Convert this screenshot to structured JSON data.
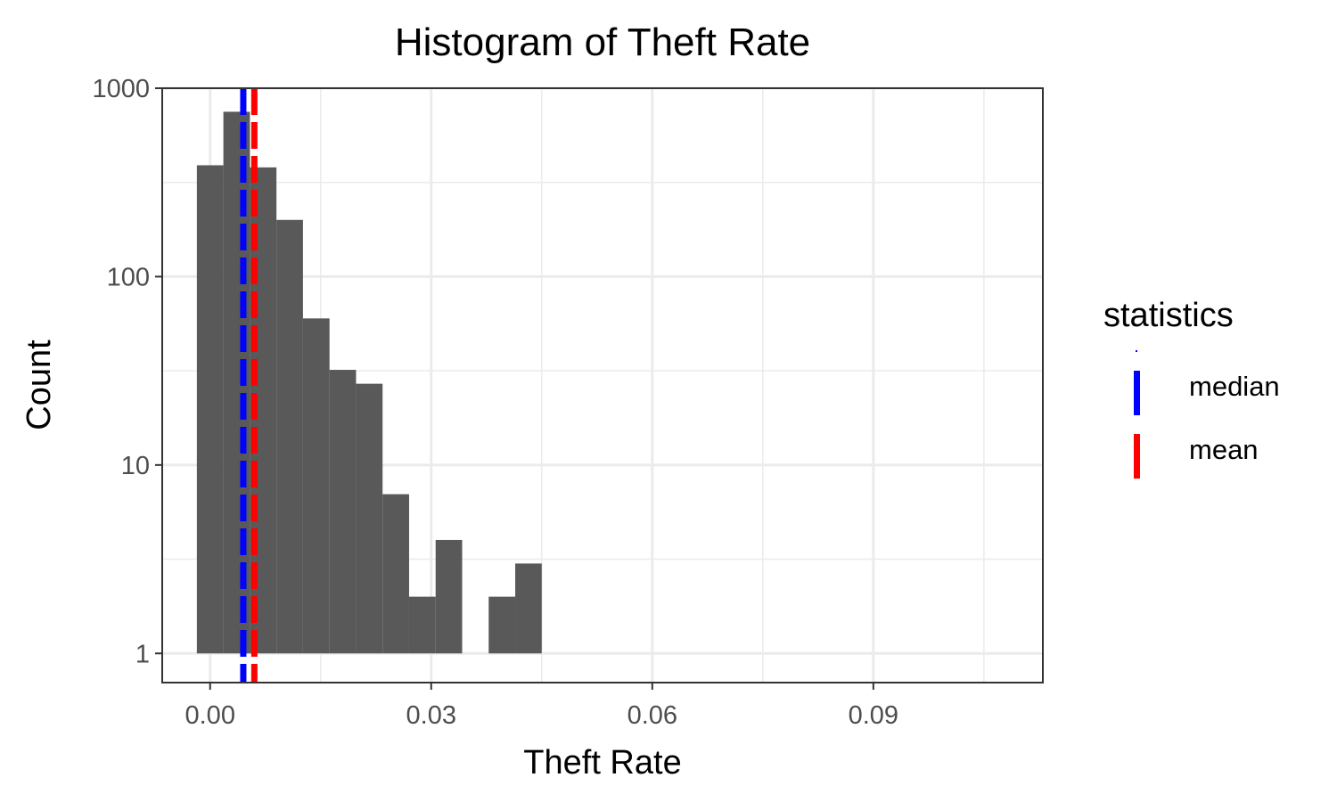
{
  "chart_data": {
    "type": "bar",
    "title": "Histogram of Theft Rate",
    "xlabel": "Theft Rate",
    "ylabel": "Count",
    "y_scale": "log10",
    "xlim": [
      -0.0065,
      0.113
    ],
    "ylim": [
      0.7,
      1000
    ],
    "x_ticks": [
      {
        "value": 0.0,
        "label": "0.00"
      },
      {
        "value": 0.03,
        "label": "0.03"
      },
      {
        "value": 0.06,
        "label": "0.06"
      },
      {
        "value": 0.09,
        "label": "0.09"
      }
    ],
    "y_ticks": [
      {
        "value": 1,
        "label": "1"
      },
      {
        "value": 10,
        "label": "10"
      },
      {
        "value": 100,
        "label": "100"
      },
      {
        "value": 1000,
        "label": "1000"
      }
    ],
    "grid": true,
    "bin_width": 0.0036,
    "bins": [
      {
        "x_start": -0.0018,
        "x_end": 0.0018,
        "count": 390
      },
      {
        "x_start": 0.0018,
        "x_end": 0.0054,
        "count": 750
      },
      {
        "x_start": 0.0054,
        "x_end": 0.009,
        "count": 380
      },
      {
        "x_start": 0.009,
        "x_end": 0.0126,
        "count": 200
      },
      {
        "x_start": 0.0126,
        "x_end": 0.0162,
        "count": 60
      },
      {
        "x_start": 0.0162,
        "x_end": 0.0198,
        "count": 32
      },
      {
        "x_start": 0.0198,
        "x_end": 0.0234,
        "count": 27
      },
      {
        "x_start": 0.0234,
        "x_end": 0.027,
        "count": 7
      },
      {
        "x_start": 0.027,
        "x_end": 0.0306,
        "count": 2
      },
      {
        "x_start": 0.0306,
        "x_end": 0.0342,
        "count": 4
      },
      {
        "x_start": 0.0378,
        "x_end": 0.0414,
        "count": 2
      },
      {
        "x_start": 0.0414,
        "x_end": 0.045,
        "count": 3
      }
    ],
    "vlines": [
      {
        "name": "median",
        "value": 0.0045,
        "color": "#0000ff",
        "style": "dashed"
      },
      {
        "name": "mean",
        "value": 0.006,
        "color": "#ff0000",
        "style": "dashed"
      }
    ],
    "legend": {
      "title": "statistics",
      "placement": "right",
      "entries": [
        {
          "label": "median",
          "color": "#0000ff"
        },
        {
          "label": "mean",
          "color": "#ff0000"
        }
      ]
    },
    "colors": {
      "bar_fill": "#595959",
      "grid": "#ebebeb",
      "panel_border": "#333333"
    }
  }
}
